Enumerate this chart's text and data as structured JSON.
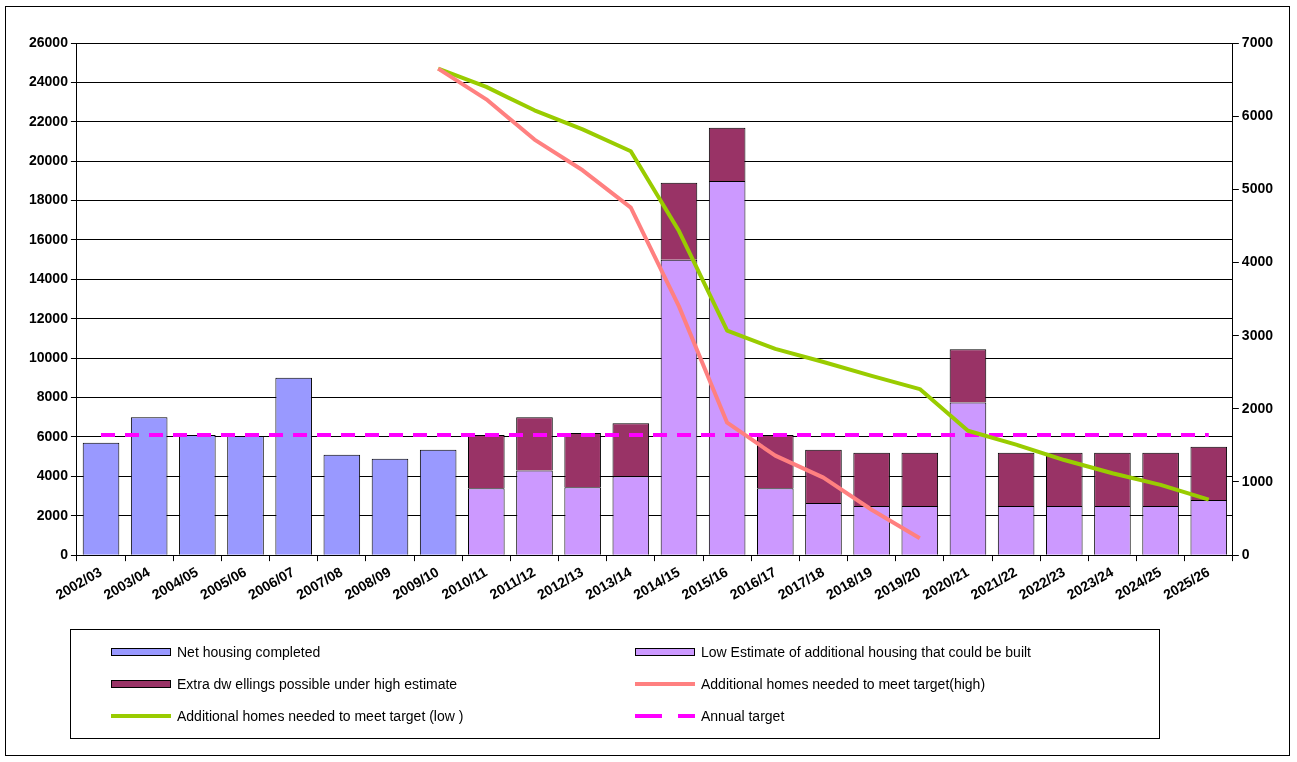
{
  "chart_data": {
    "type": "bar",
    "stacked": true,
    "grid": "y",
    "legend": "bottom",
    "marker": "none",
    "categories": [
      "2002/03",
      "2003/04",
      "2004/05",
      "2005/06",
      "2006/07",
      "2007/08",
      "2008/09",
      "2009/10",
      "2010/11",
      "2011/12",
      "2012/13",
      "2013/14",
      "2014/15",
      "2015/16",
      "2016/17",
      "2017/18",
      "2018/19",
      "2019/20",
      "2020/21",
      "2021/22",
      "2022/23",
      "2023/24",
      "2024/25",
      "2025/26"
    ],
    "ylim": [
      0,
      26000
    ],
    "yticks": [
      0,
      2000,
      4000,
      6000,
      8000,
      10000,
      12000,
      14000,
      16000,
      18000,
      20000,
      22000,
      24000,
      26000
    ],
    "y2lim": [
      0,
      7000
    ],
    "y2ticks": [
      0,
      1000,
      2000,
      3000,
      4000,
      5000,
      6000,
      7000
    ],
    "series": [
      {
        "name": "Net housing completed",
        "color": "#9999ff",
        "values": [
          5700,
          7000,
          6100,
          6050,
          9000,
          5100,
          4900,
          5350,
          null,
          null,
          null,
          null,
          null,
          null,
          null,
          null,
          null,
          null,
          null,
          null,
          null,
          null,
          null,
          null
        ]
      },
      {
        "name": "Low  Estimate of additional housing that could be built",
        "color": "#cc99ff",
        "values": [
          null,
          null,
          null,
          null,
          null,
          null,
          null,
          null,
          3400,
          4300,
          3450,
          4000,
          15000,
          19000,
          3400,
          2650,
          2500,
          2500,
          7750,
          2500,
          2500,
          2500,
          2500,
          2800
        ]
      },
      {
        "name": "Extra dw ellings possible under high estimate",
        "color": "#993366",
        "values": [
          null,
          null,
          null,
          null,
          null,
          null,
          null,
          null,
          2700,
          2700,
          2750,
          2700,
          3900,
          2700,
          2700,
          2700,
          2700,
          2700,
          2700,
          2700,
          2700,
          2700,
          2700,
          2700
        ]
      },
      {
        "name": "Additional homes needed to meet target(high)",
        "color": "#ff8080",
        "type": "line",
        "axis": "y2",
        "values": [
          null,
          null,
          null,
          null,
          null,
          null,
          null,
          6650,
          6230,
          5680,
          5260,
          4750,
          3400,
          1810,
          1360,
          1060,
          620,
          230,
          null,
          null,
          null,
          null,
          null,
          null
        ]
      },
      {
        "name": "Additional homes needed to meet target (low )",
        "color": "#99cc00",
        "type": "line",
        "axis": "y2",
        "values": [
          null,
          null,
          null,
          null,
          null,
          null,
          null,
          6650,
          6400,
          6080,
          5820,
          5520,
          4430,
          3070,
          2820,
          2640,
          2450,
          2270,
          1700,
          1510,
          1300,
          1120,
          960,
          760
        ]
      },
      {
        "name": "Annual target",
        "color": "#ff00ff",
        "type": "line",
        "line_style": "dashed",
        "values": [
          6100,
          6100,
          6100,
          6100,
          6100,
          6100,
          6100,
          6100,
          6100,
          6100,
          6100,
          6100,
          6100,
          6100,
          6100,
          6100,
          6100,
          6100,
          6100,
          6100,
          6100,
          6100,
          6100,
          6100
        ]
      }
    ]
  }
}
